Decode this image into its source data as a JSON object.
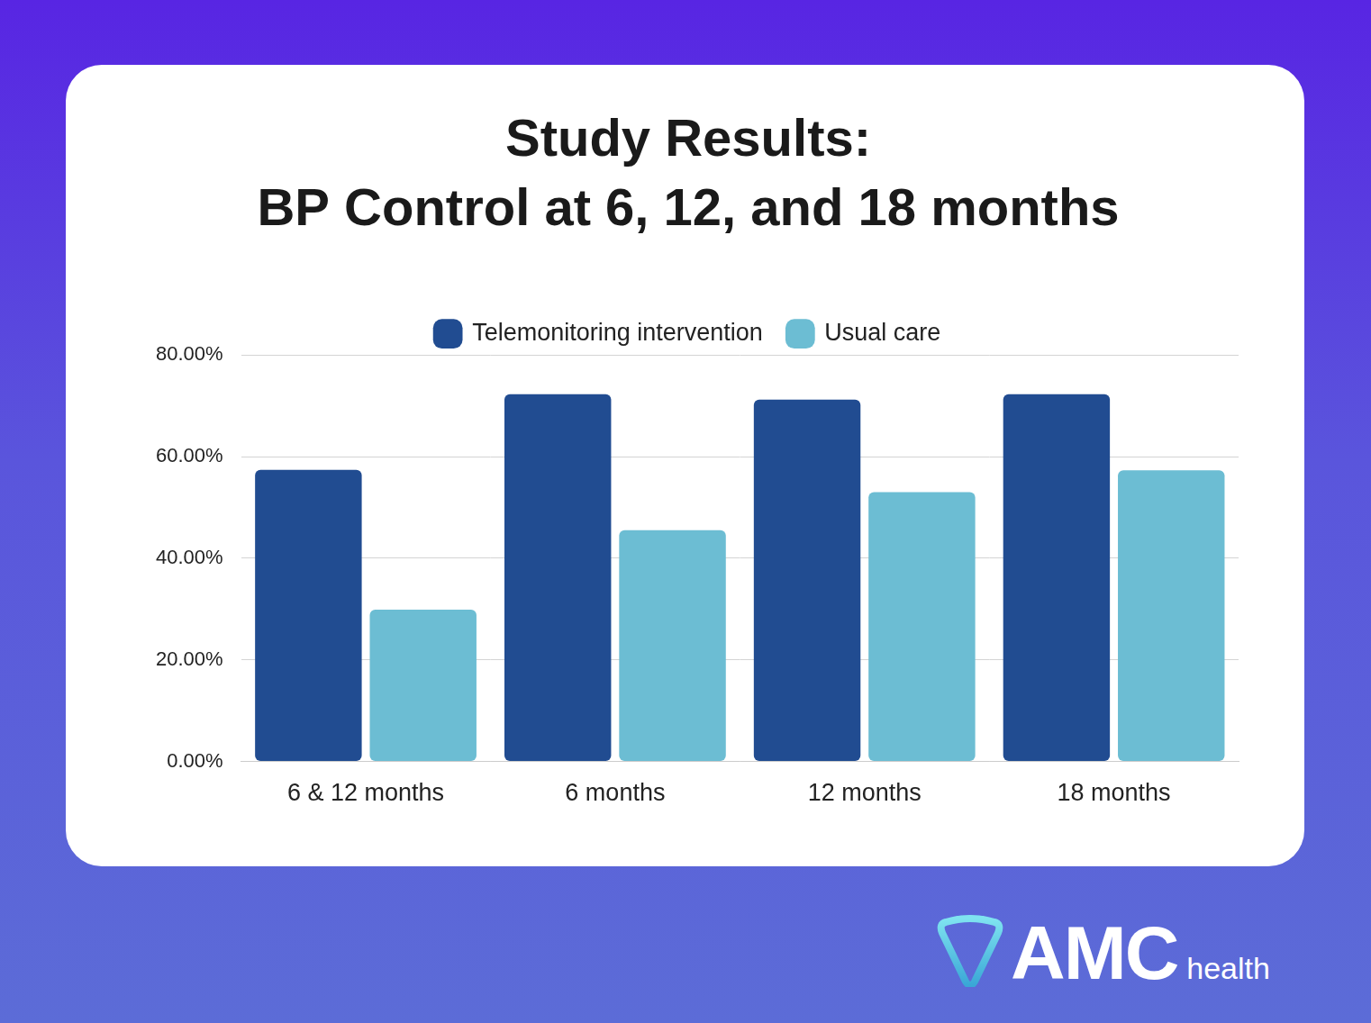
{
  "chart_data": {
    "type": "bar",
    "title": "Study Results:",
    "subtitle": "BP Control at 6, 12, and 18 months",
    "categories": [
      "6 & 12 months",
      "6 months",
      "12 months",
      "18 months"
    ],
    "series": [
      {
        "name": "Telemonitoring intervention",
        "color": "#214c91",
        "values": [
          57.4,
          72.3,
          71.2,
          72.3
        ]
      },
      {
        "name": "Usual care",
        "color": "#6cbdd3",
        "values": [
          29.9,
          45.5,
          53.0,
          57.3
        ]
      }
    ],
    "ylim": [
      0,
      80
    ],
    "yticks": [
      {
        "value": 0,
        "label": "0.00%"
      },
      {
        "value": 20,
        "label": "20.00%"
      },
      {
        "value": 40,
        "label": "40.00%"
      },
      {
        "value": 60,
        "label": "60.00%"
      },
      {
        "value": 80,
        "label": "80.00%"
      }
    ],
    "grid": true,
    "legend": "top"
  },
  "logo": {
    "text": "AMC",
    "subtext": "health"
  }
}
